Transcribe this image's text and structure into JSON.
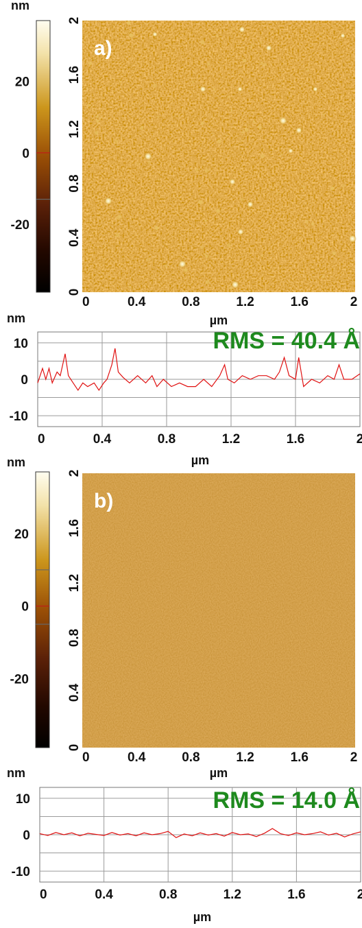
{
  "chart_data": [
    {
      "type": "heatmap",
      "panel_label": "a)",
      "colorbar_unit": "nm",
      "colorbar_ticks": [
        {
          "value": 20,
          "label": "20"
        },
        {
          "value": 0,
          "label": "0"
        },
        {
          "value": -20,
          "label": "-20"
        }
      ],
      "colorbar_range": [
        -39,
        37
      ],
      "colorbar_markers": [
        0,
        -13
      ],
      "x_ticks": [
        "0",
        "0.4",
        "0.8",
        "1.2",
        "1.6",
        "2"
      ],
      "y_ticks": [
        "0",
        "0.4",
        "0.8",
        "1.2",
        "1.6",
        "2"
      ],
      "xlim": [
        0,
        2
      ],
      "ylim": [
        0,
        2
      ],
      "xlabel": "µm",
      "texture": "rough, with bright particles"
    },
    {
      "type": "line",
      "ylabel": "nm",
      "xlabel": "µm",
      "annotation": "RMS = 40.4 Å",
      "x_ticks": [
        "0",
        "0.4",
        "0.8",
        "1.2",
        "1.6",
        "2"
      ],
      "y_ticks": [
        "10",
        "0",
        "-10"
      ],
      "xlim": [
        0,
        2
      ],
      "ylim": [
        -13,
        13
      ],
      "grid": true,
      "line_color": "#e01010",
      "x": [
        0.0,
        0.03,
        0.05,
        0.07,
        0.09,
        0.12,
        0.14,
        0.17,
        0.19,
        0.22,
        0.25,
        0.28,
        0.31,
        0.35,
        0.38,
        0.41,
        0.43,
        0.46,
        0.48,
        0.5,
        0.53,
        0.57,
        0.62,
        0.67,
        0.71,
        0.74,
        0.78,
        0.83,
        0.88,
        0.93,
        0.98,
        1.03,
        1.08,
        1.13,
        1.16,
        1.18,
        1.22,
        1.27,
        1.32,
        1.37,
        1.42,
        1.47,
        1.5,
        1.53,
        1.56,
        1.6,
        1.62,
        1.65,
        1.7,
        1.75,
        1.8,
        1.84,
        1.87,
        1.9,
        1.95,
        2.0
      ],
      "y": [
        -1.0,
        3.0,
        0.0,
        3.0,
        -1.0,
        2.0,
        1.0,
        7.0,
        1.0,
        -1.0,
        -3.0,
        -1.0,
        -2.0,
        -1.0,
        -3.0,
        -1.0,
        0.0,
        4.0,
        8.5,
        2.0,
        0.5,
        -1.0,
        1.0,
        -1.0,
        1.0,
        -2.0,
        0.0,
        -2.0,
        -1.0,
        -2.0,
        -2.0,
        0.0,
        -2.0,
        1.0,
        4.0,
        0.0,
        -1.0,
        1.0,
        0.0,
        1.0,
        1.0,
        0.0,
        2.0,
        6.0,
        1.0,
        0.0,
        6.0,
        -2.0,
        0.0,
        -1.0,
        1.0,
        0.0,
        4.0,
        0.0,
        0.0,
        1.5
      ]
    },
    {
      "type": "heatmap",
      "panel_label": "b)",
      "colorbar_unit": "nm",
      "colorbar_ticks": [
        {
          "value": 20,
          "label": "20"
        },
        {
          "value": 0,
          "label": "0"
        },
        {
          "value": -20,
          "label": "-20"
        }
      ],
      "colorbar_range": [
        -39,
        37
      ],
      "colorbar_markers": [
        10,
        0,
        -5
      ],
      "x_ticks": [
        "0",
        "0.4",
        "0.8",
        "1.2",
        "1.6",
        "2"
      ],
      "y_ticks": [
        "0",
        "0.4",
        "0.8",
        "1.2",
        "1.6",
        "2"
      ],
      "xlim": [
        0,
        2
      ],
      "ylim": [
        0,
        2
      ],
      "xlabel": "µm",
      "texture": "smooth, fine grain"
    },
    {
      "type": "line",
      "ylabel": "nm",
      "xlabel": "µm",
      "annotation": "RMS = 14.0 Å",
      "x_ticks": [
        "0",
        "0.4",
        "0.8",
        "1.2",
        "1.6",
        "2"
      ],
      "y_ticks": [
        "10",
        "0",
        "-10"
      ],
      "xlim": [
        0,
        2
      ],
      "ylim": [
        -13,
        13
      ],
      "grid": true,
      "line_color": "#e01010",
      "x": [
        0.0,
        0.05,
        0.1,
        0.15,
        0.2,
        0.25,
        0.3,
        0.35,
        0.4,
        0.45,
        0.5,
        0.55,
        0.6,
        0.65,
        0.7,
        0.75,
        0.8,
        0.85,
        0.9,
        0.95,
        1.0,
        1.05,
        1.1,
        1.15,
        1.2,
        1.25,
        1.3,
        1.35,
        1.4,
        1.45,
        1.5,
        1.55,
        1.6,
        1.65,
        1.7,
        1.75,
        1.8,
        1.85,
        1.9,
        1.95,
        2.0
      ],
      "y": [
        0.3,
        -0.2,
        0.6,
        0.0,
        0.5,
        -0.3,
        0.4,
        0.1,
        -0.2,
        0.6,
        -0.1,
        0.3,
        -0.3,
        0.5,
        0.0,
        0.3,
        0.9,
        -0.8,
        0.2,
        -0.3,
        0.5,
        -0.1,
        0.3,
        -0.4,
        0.6,
        0.0,
        0.2,
        -0.5,
        0.4,
        1.7,
        0.3,
        -0.2,
        0.5,
        0.0,
        0.3,
        0.8,
        -0.1,
        0.4,
        -0.6,
        0.2,
        0.8
      ]
    }
  ]
}
